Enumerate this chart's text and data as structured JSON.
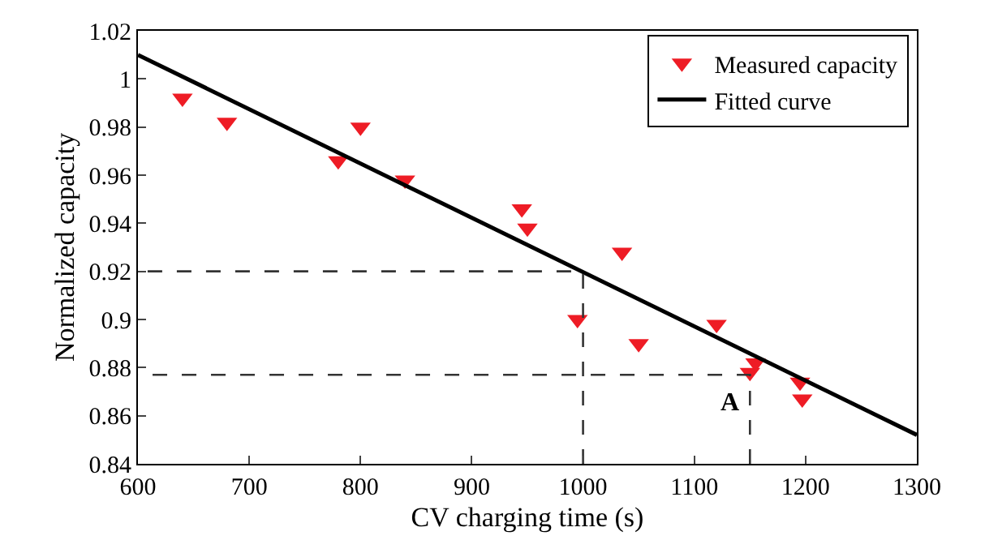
{
  "chart_data": {
    "type": "scatter",
    "xlabel": "CV charging time (s)",
    "ylabel": "Normalized capacity",
    "xlim": [
      600,
      1300
    ],
    "xticks": [
      600,
      700,
      800,
      900,
      1000,
      1100,
      1200,
      1300
    ],
    "ylim": [
      0.84,
      1.02
    ],
    "yticks": [
      0.84,
      0.86,
      0.88,
      0.9,
      0.92,
      0.94,
      0.96,
      0.98,
      {
        "value": 1,
        "label": "1"
      },
      1.02
    ],
    "legend": "top right",
    "series": [
      {
        "name": "Measured capacity",
        "marker": "triangle",
        "color": "#ee1c25",
        "x": [
          640,
          680,
          780,
          800,
          840,
          945,
          950,
          995,
          1035,
          1050,
          1120,
          1150,
          1155,
          1195,
          1197
        ],
        "values": [
          0.992,
          0.982,
          0.966,
          0.98,
          0.958,
          0.946,
          0.938,
          0.9,
          0.928,
          0.89,
          0.898,
          0.878,
          0.882,
          0.874,
          0.867
        ]
      },
      {
        "name": "Fitted curve",
        "type": "line",
        "line_style": "solid",
        "color": "#000000",
        "x": [
          600,
          1300
        ],
        "values": [
          1.01,
          0.852
        ]
      },
      {
        "type": "line",
        "line_style": "dashed",
        "color": "#333333",
        "x": [
          1000,
          1000,
          600
        ],
        "values": [
          0.84,
          0.92,
          0.92
        ]
      },
      {
        "type": "line",
        "line_style": "dashed",
        "color": "#333333",
        "x": [
          1150,
          1150,
          600
        ],
        "values": [
          0.84,
          0.877,
          0.877
        ]
      }
    ],
    "annotations": [
      "A"
    ]
  }
}
